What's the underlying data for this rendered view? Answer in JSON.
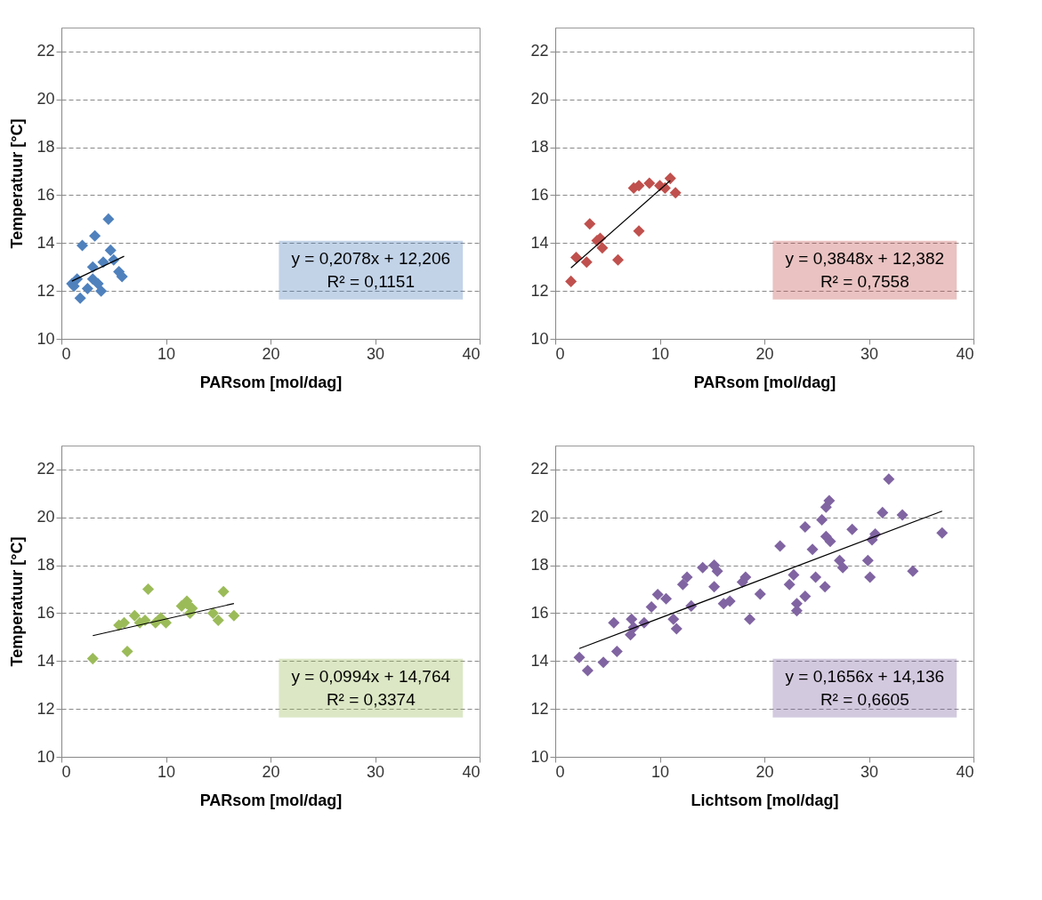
{
  "chart_data": [
    {
      "type": "scatter",
      "xlabel": "PARsom [mol/dag]",
      "ylabel": "Temperatuur [°C]",
      "xlim": [
        0,
        40
      ],
      "xticks": [
        0,
        10,
        20,
        30,
        40
      ],
      "ylim": [
        10,
        23
      ],
      "yticks": [
        10,
        12,
        14,
        16,
        18,
        20,
        22
      ],
      "grid": "y",
      "annotations": [
        "y = 0,2078x + 12,206",
        "R² = 0,1151"
      ],
      "series": [
        {
          "color": "#4f81bd",
          "marker": "diamond",
          "x": [
            1,
            1.2,
            1.5,
            1.8,
            2,
            2.5,
            3,
            3.2,
            3,
            3.5,
            3.8,
            4,
            4.5,
            4.7,
            5,
            5.5,
            5.8
          ],
          "values": [
            12.3,
            12.2,
            12.5,
            11.7,
            13.9,
            12.1,
            13,
            14.3,
            12.5,
            12.3,
            12,
            13.2,
            15,
            13.7,
            13.3,
            12.8,
            12.6
          ]
        },
        {
          "type": "line",
          "marker": "none",
          "color": "#000000",
          "x": [
            1,
            6
          ],
          "values": [
            12.41,
            13.45
          ]
        }
      ]
    },
    {
      "type": "scatter",
      "xlabel": "PARsom [mol/dag]",
      "xlim": [
        0,
        40
      ],
      "xticks": [
        0,
        10,
        20,
        30,
        40
      ],
      "ylim": [
        10,
        23
      ],
      "yticks": [
        10,
        12,
        14,
        16,
        18,
        20,
        22
      ],
      "grid": "y",
      "annotations": [
        "y = 0,3848x + 12,382",
        "R² = 0,7558"
      ],
      "series": [
        {
          "color": "#c0504d",
          "marker": "diamond",
          "x": [
            1.5,
            2,
            3,
            3.3,
            4,
            4.3,
            4.5,
            6,
            7.5,
            8,
            8,
            9,
            10,
            10.5,
            11,
            11.5
          ],
          "values": [
            12.4,
            13.4,
            13.2,
            14.8,
            14.1,
            14.2,
            13.8,
            13.3,
            16.3,
            16.4,
            14.5,
            16.5,
            16.4,
            16.3,
            16.7,
            16.1
          ]
        },
        {
          "type": "line",
          "marker": "none",
          "color": "#000000",
          "x": [
            1.5,
            11
          ],
          "values": [
            12.96,
            16.61
          ]
        }
      ]
    },
    {
      "type": "scatter",
      "xlabel": "PARsom [mol/dag]",
      "ylabel": "Temperatuur [°C]",
      "xlim": [
        0,
        40
      ],
      "xticks": [
        0,
        10,
        20,
        30,
        40
      ],
      "ylim": [
        10,
        23
      ],
      "yticks": [
        10,
        12,
        14,
        16,
        18,
        20,
        22
      ],
      "grid": "y",
      "annotations": [
        "y = 0,0994x + 14,764",
        "R² = 0,3374"
      ],
      "series": [
        {
          "color": "#9bbb59",
          "marker": "diamond",
          "x": [
            3,
            5.5,
            6,
            6.3,
            7,
            7.5,
            8,
            8.3,
            9,
            9.5,
            10,
            11.5,
            12,
            12.3,
            12.5,
            14.5,
            15,
            15.5,
            16.5,
            12
          ],
          "values": [
            14.1,
            15.5,
            15.6,
            14.4,
            15.9,
            15.6,
            15.7,
            17,
            15.6,
            15.8,
            15.6,
            16.3,
            16.5,
            16,
            16.2,
            16,
            15.7,
            16.9,
            15.9,
            16.4
          ]
        },
        {
          "type": "line",
          "marker": "none",
          "color": "#000000",
          "x": [
            3,
            16.5
          ],
          "values": [
            15.06,
            16.4
          ]
        }
      ]
    },
    {
      "type": "scatter",
      "xlabel": "Lichtsom [mol/dag]",
      "xlim": [
        0,
        40
      ],
      "xticks": [
        0,
        10,
        20,
        30,
        40
      ],
      "ylim": [
        10,
        23
      ],
      "yticks": [
        10,
        12,
        14,
        16,
        18,
        20,
        22
      ],
      "grid": "y",
      "annotations": [
        "y = 0,1656x + 14,136",
        "R² = 0,6605"
      ],
      "series": [
        {
          "color": "#8064a2",
          "marker": "diamond",
          "x": [
            2.3,
            3.1,
            4.6,
            5.9,
            5.6,
            7.3,
            7.2,
            8.5,
            7.5,
            9.2,
            9.8,
            10.6,
            11.3,
            11.6,
            12.2,
            12.6,
            13,
            14.1,
            15.2,
            15.5,
            15.2,
            16.1,
            16.7,
            18.2,
            17.9,
            18.6,
            19.6,
            21.5,
            22.8,
            22.4,
            23.1,
            23.1,
            23.9,
            23.9,
            24.6,
            24.9,
            25.8,
            25.5,
            25.9,
            26.2,
            25.9,
            26.3,
            27.2,
            27.5,
            28.4,
            29.9,
            30.1,
            30.3,
            30.6,
            31.3,
            31.9,
            33.2,
            34.2,
            37
          ],
          "values": [
            14.15,
            13.6,
            13.95,
            14.4,
            15.6,
            15.75,
            15.1,
            15.6,
            15.4,
            16.26,
            16.78,
            16.6,
            15.75,
            15.35,
            17.2,
            17.5,
            16.3,
            17.9,
            18,
            17.75,
            17.1,
            16.4,
            16.5,
            17.5,
            17.3,
            15.75,
            16.8,
            18.8,
            17.6,
            17.2,
            16.4,
            16.1,
            16.7,
            19.6,
            18.66,
            17.5,
            17.1,
            19.9,
            20.43,
            20.7,
            19.2,
            19,
            18.2,
            17.9,
            19.5,
            18.2,
            17.5,
            19.06,
            19.3,
            20.2,
            21.6,
            20.1,
            17.75,
            19.35
          ]
        },
        {
          "type": "line",
          "marker": "none",
          "color": "#000000",
          "x": [
            2.3,
            37
          ],
          "values": [
            14.52,
            20.26
          ]
        }
      ]
    }
  ]
}
